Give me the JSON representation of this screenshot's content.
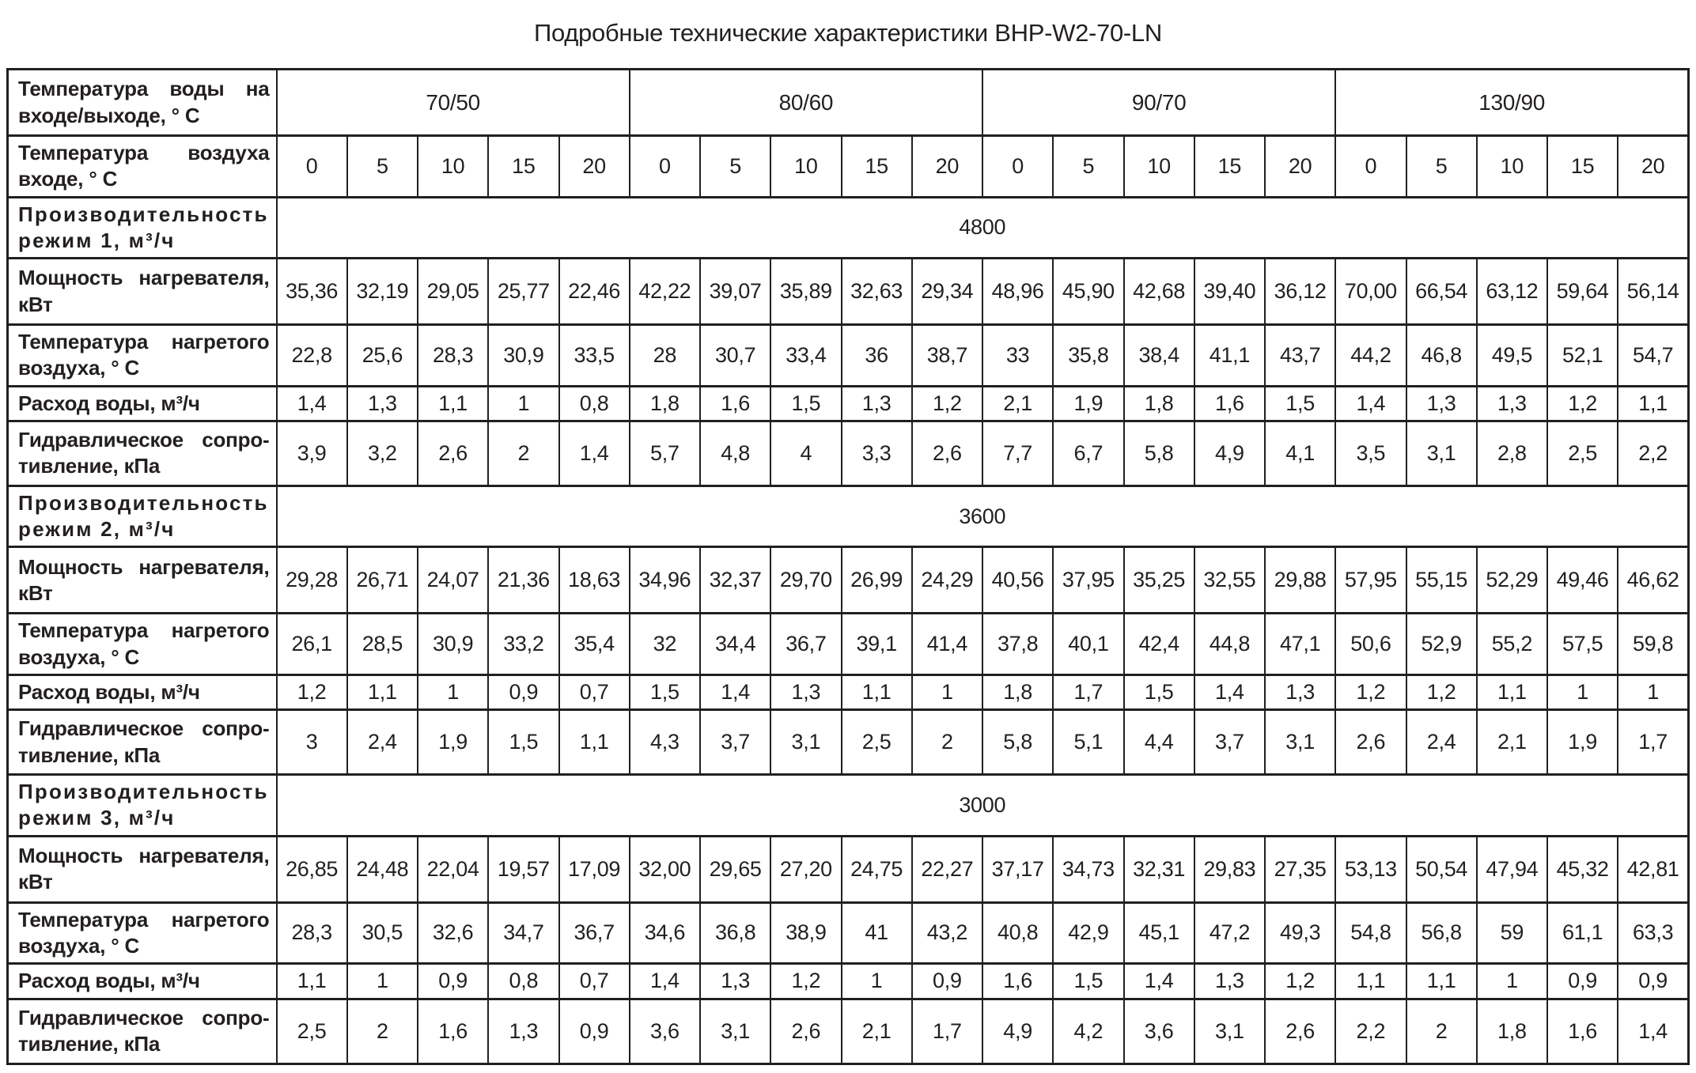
{
  "title": "Подробные технические характеристики BHP-W2-70-LN",
  "colors": {
    "text": "#231f20",
    "border": "#231f20",
    "background": "#ffffff"
  },
  "table": {
    "header": {
      "water_temp_label": "Температура воды на входе/выходе, ° С",
      "air_temp_label": "Температура воздуха входе, ° С",
      "water_temp_groups": [
        "70/50",
        "80/60",
        "90/70",
        "130/90"
      ],
      "air_temps": [
        "0",
        "5",
        "10",
        "15",
        "20"
      ]
    },
    "modes": [
      {
        "capacity_label": "Производительность режим 1, м³/ч",
        "capacity_value": "4800",
        "rows": [
          {
            "label": "Мощность нагревателя, кВт",
            "values": [
              "35,36",
              "32,19",
              "29,05",
              "25,77",
              "22,46",
              "42,22",
              "39,07",
              "35,89",
              "32,63",
              "29,34",
              "48,96",
              "45,90",
              "42,68",
              "39,40",
              "36,12",
              "70,00",
              "66,54",
              "63,12",
              "59,64",
              "56,14"
            ]
          },
          {
            "label": "Температура нагретого воздуха, ° С",
            "values": [
              "22,8",
              "25,6",
              "28,3",
              "30,9",
              "33,5",
              "28",
              "30,7",
              "33,4",
              "36",
              "38,7",
              "33",
              "35,8",
              "38,4",
              "41,1",
              "43,7",
              "44,2",
              "46,8",
              "49,5",
              "52,1",
              "54,7"
            ]
          },
          {
            "label": "Расход воды, м³/ч",
            "values": [
              "1,4",
              "1,3",
              "1,1",
              "1",
              "0,8",
              "1,8",
              "1,6",
              "1,5",
              "1,3",
              "1,2",
              "2,1",
              "1,9",
              "1,8",
              "1,6",
              "1,5",
              "1,4",
              "1,3",
              "1,3",
              "1,2",
              "1,1"
            ]
          },
          {
            "label": "Гидравлическое сопро-тивление, кПа",
            "values": [
              "3,9",
              "3,2",
              "2,6",
              "2",
              "1,4",
              "5,7",
              "4,8",
              "4",
              "3,3",
              "2,6",
              "7,7",
              "6,7",
              "5,8",
              "4,9",
              "4,1",
              "3,5",
              "3,1",
              "2,8",
              "2,5",
              "2,2"
            ]
          }
        ]
      },
      {
        "capacity_label": "Производительность режим 2, м³/ч",
        "capacity_value": "3600",
        "rows": [
          {
            "label": "Мощность нагревателя, кВт",
            "values": [
              "29,28",
              "26,71",
              "24,07",
              "21,36",
              "18,63",
              "34,96",
              "32,37",
              "29,70",
              "26,99",
              "24,29",
              "40,56",
              "37,95",
              "35,25",
              "32,55",
              "29,88",
              "57,95",
              "55,15",
              "52,29",
              "49,46",
              "46,62"
            ]
          },
          {
            "label": "Температура нагретого воздуха, ° С",
            "values": [
              "26,1",
              "28,5",
              "30,9",
              "33,2",
              "35,4",
              "32",
              "34,4",
              "36,7",
              "39,1",
              "41,4",
              "37,8",
              "40,1",
              "42,4",
              "44,8",
              "47,1",
              "50,6",
              "52,9",
              "55,2",
              "57,5",
              "59,8"
            ]
          },
          {
            "label": "Расход воды, м³/ч",
            "values": [
              "1,2",
              "1,1",
              "1",
              "0,9",
              "0,7",
              "1,5",
              "1,4",
              "1,3",
              "1,1",
              "1",
              "1,8",
              "1,7",
              "1,5",
              "1,4",
              "1,3",
              "1,2",
              "1,2",
              "1,1",
              "1",
              "1"
            ]
          },
          {
            "label": "Гидравлическое сопро-тивление, кПа",
            "values": [
              "3",
              "2,4",
              "1,9",
              "1,5",
              "1,1",
              "4,3",
              "3,7",
              "3,1",
              "2,5",
              "2",
              "5,8",
              "5,1",
              "4,4",
              "3,7",
              "3,1",
              "2,6",
              "2,4",
              "2,1",
              "1,9",
              "1,7"
            ]
          }
        ]
      },
      {
        "capacity_label": "Производительность режим 3, м³/ч",
        "capacity_value": "3000",
        "rows": [
          {
            "label": "Мощность нагревателя, кВт",
            "values": [
              "26,85",
              "24,48",
              "22,04",
              "19,57",
              "17,09",
              "32,00",
              "29,65",
              "27,20",
              "24,75",
              "22,27",
              "37,17",
              "34,73",
              "32,31",
              "29,83",
              "27,35",
              "53,13",
              "50,54",
              "47,94",
              "45,32",
              "42,81"
            ]
          },
          {
            "label": "Температура нагретого воздуха, ° С",
            "values": [
              "28,3",
              "30,5",
              "32,6",
              "34,7",
              "36,7",
              "34,6",
              "36,8",
              "38,9",
              "41",
              "43,2",
              "40,8",
              "42,9",
              "45,1",
              "47,2",
              "49,3",
              "54,8",
              "56,8",
              "59",
              "61,1",
              "63,3"
            ]
          },
          {
            "label": "Расход воды, м³/ч",
            "values": [
              "1,1",
              "1",
              "0,9",
              "0,8",
              "0,7",
              "1,4",
              "1,3",
              "1,2",
              "1",
              "0,9",
              "1,6",
              "1,5",
              "1,4",
              "1,3",
              "1,2",
              "1,1",
              "1,1",
              "1",
              "0,9",
              "0,9"
            ]
          },
          {
            "label": "Гидравлическое сопро-тивление, кПа",
            "values": [
              "2,5",
              "2",
              "1,6",
              "1,3",
              "0,9",
              "3,6",
              "3,1",
              "2,6",
              "2,1",
              "1,7",
              "4,9",
              "4,2",
              "3,6",
              "3,1",
              "2,6",
              "2,2",
              "2",
              "1,8",
              "1,6",
              "1,4"
            ]
          }
        ]
      }
    ]
  }
}
